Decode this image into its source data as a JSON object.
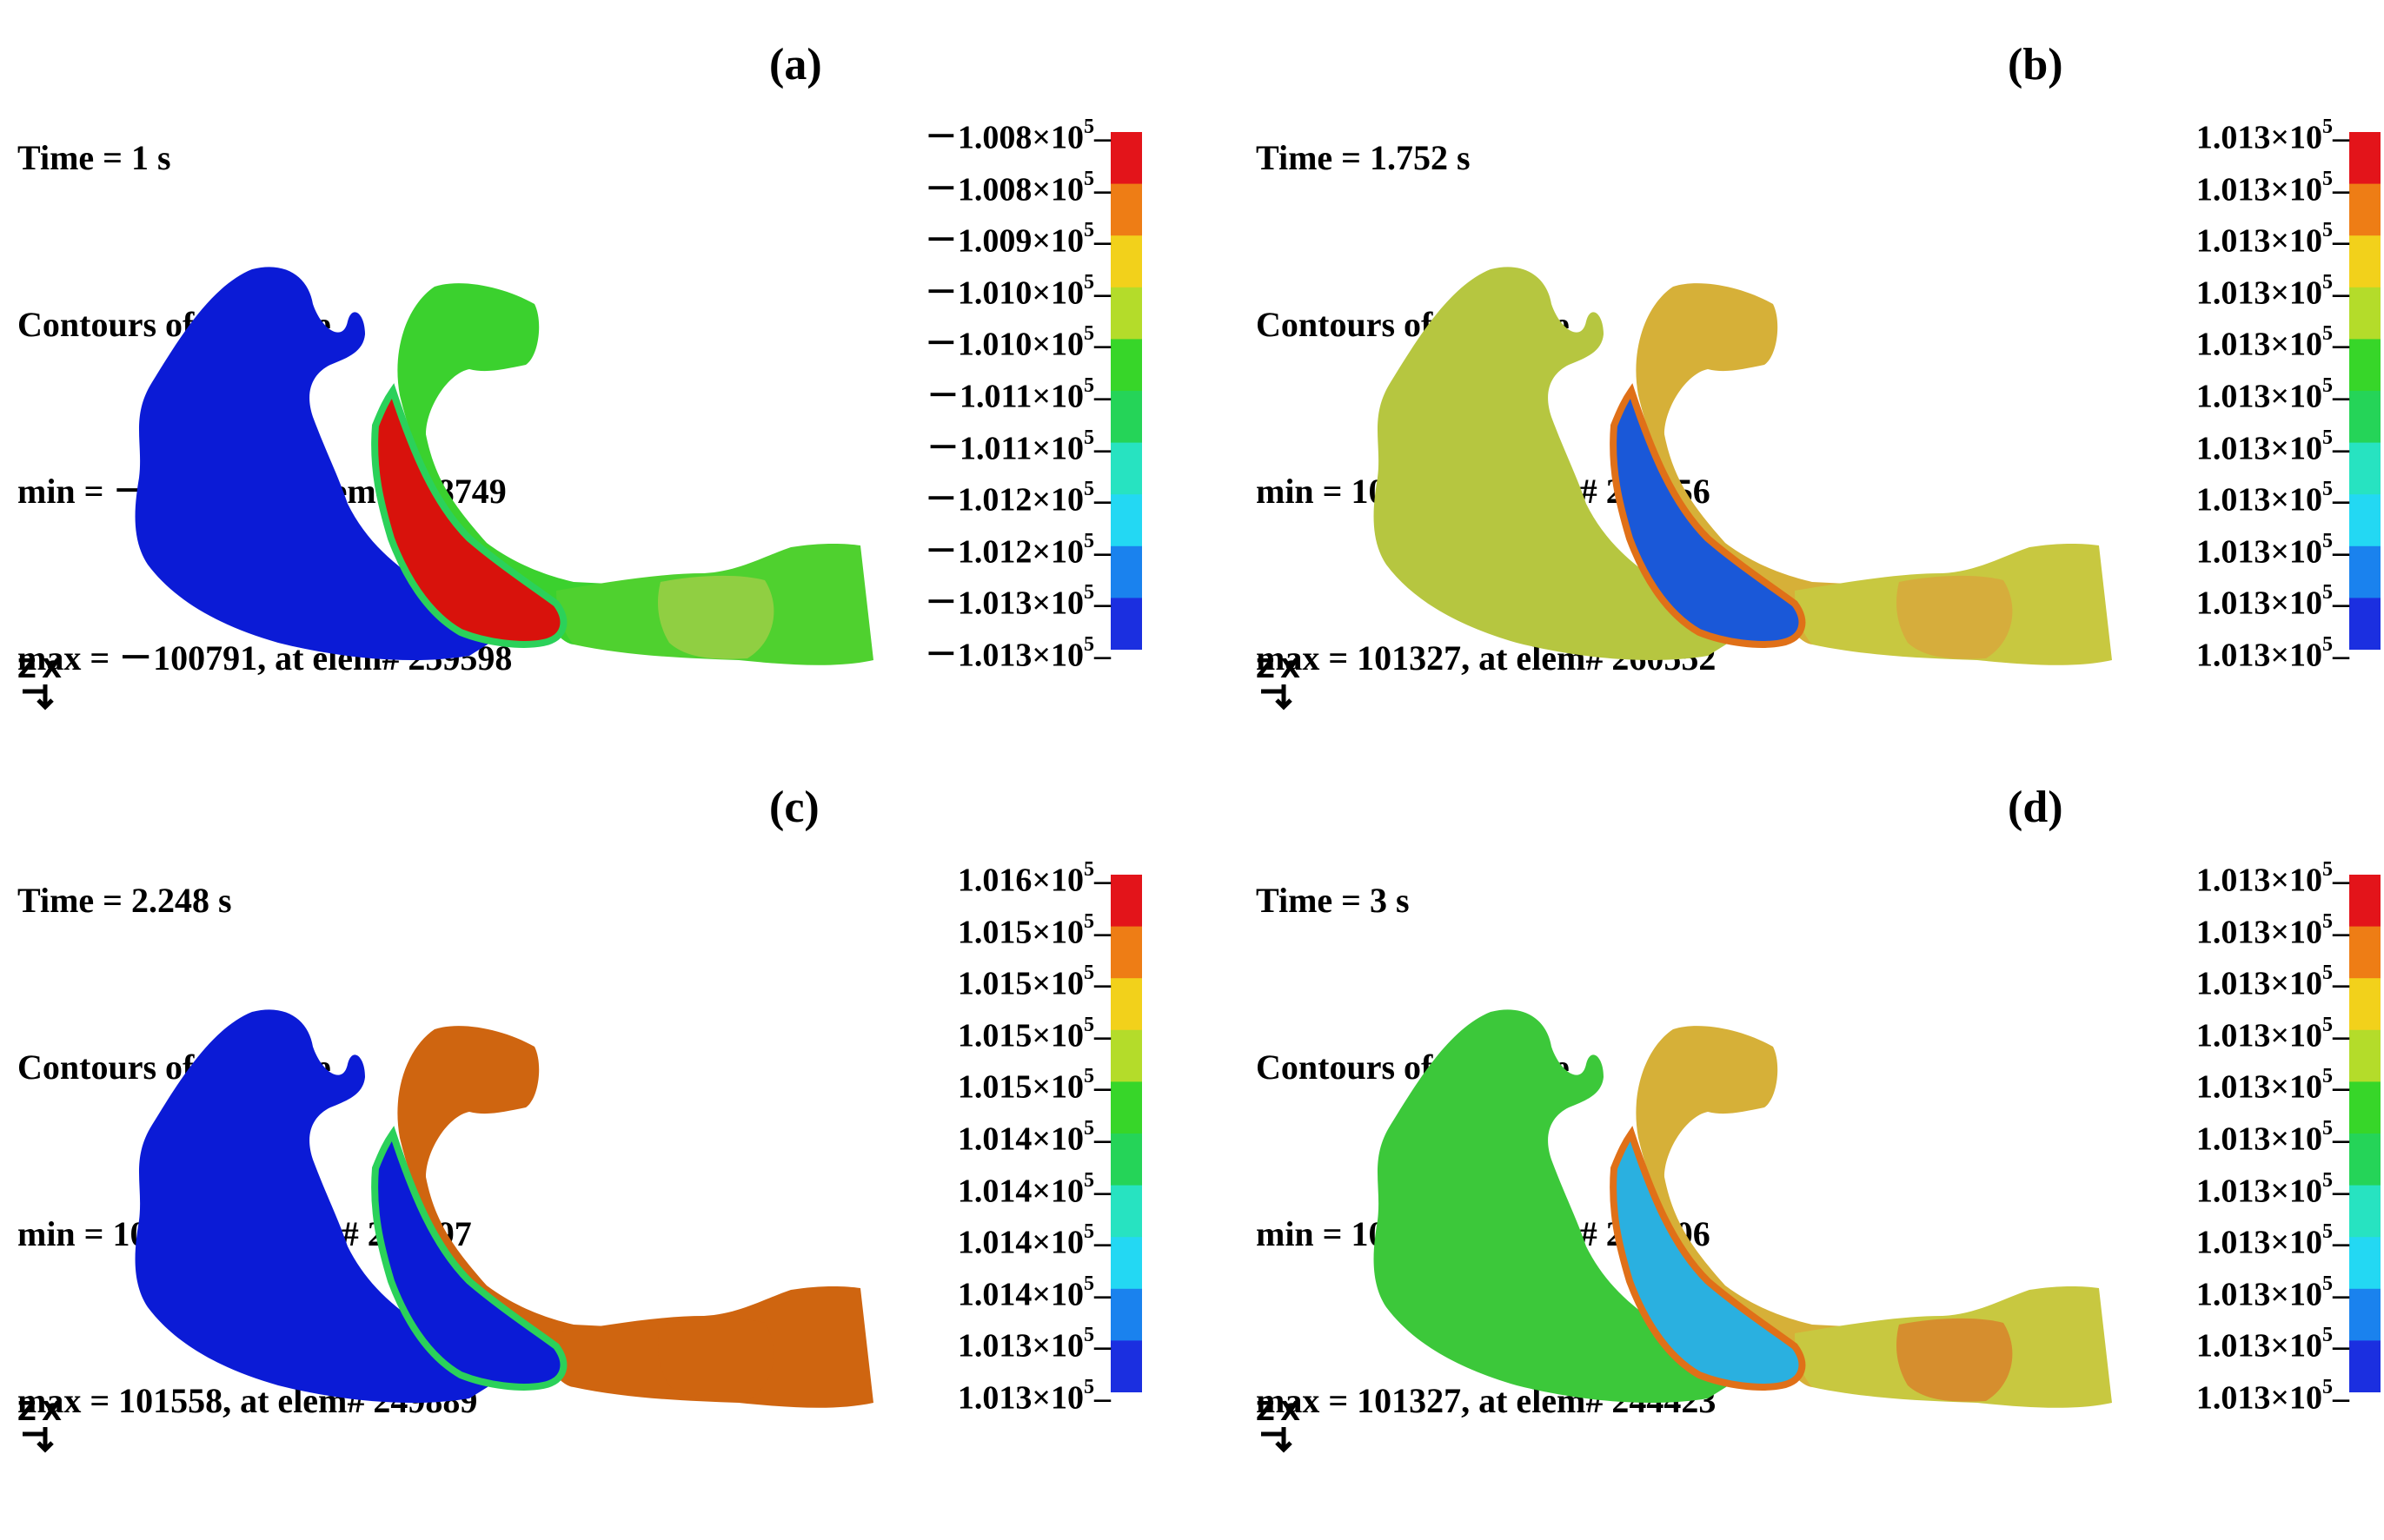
{
  "panels": [
    {
      "label": "(a)",
      "time": "Time = 1 s",
      "title": "Contours of Pressure",
      "min": "min = －101347, at elem# 258749",
      "max": "max = －100791, at elem# 259598",
      "colorbar_ticks": [
        "－1.008×10",
        "－1.008×10",
        "－1.009×10",
        "－1.010×10",
        "－1.010×10",
        "－1.011×10",
        "－1.011×10",
        "－1.012×10",
        "－1.012×10",
        "－1.013×10",
        "－1.013×10"
      ],
      "exponent": "5",
      "region_colors": {
        "left": "#0b1bd6",
        "channel": "#d8120c",
        "channel_edge": "#2bd15a",
        "upper": "#3bd12e",
        "tail": "#4fd12f",
        "tail_patch": "#9bcf45"
      }
    },
    {
      "label": "(b)",
      "time": "Time = 1.752 s",
      "title": "Contours of Pressure",
      "min": "min = 101322, at elem# 276556",
      "max": "max = 101327, at elem# 260552",
      "colorbar_ticks": [
        "1.013×10",
        "1.013×10",
        "1.013×10",
        "1.013×10",
        "1.013×10",
        "1.013×10",
        "1.013×10",
        "1.013×10",
        "1.013×10",
        "1.013×10",
        "1.013×10"
      ],
      "exponent": "5",
      "region_colors": {
        "left": "#b6c640",
        "channel": "#1a58d8",
        "channel_edge": "#e07018",
        "upper": "#d6b038",
        "tail": "#c8c840",
        "tail_patch": "#d8a83c"
      }
    },
    {
      "label": "(c)",
      "time": "Time = 2.248 s",
      "title": "Contours of Pressure",
      "min": "min = 101304, at elem# 273097",
      "max": "max = 101558, at elem# 249889",
      "colorbar_ticks": [
        "1.016×10",
        "1.015×10",
        "1.015×10",
        "1.015×10",
        "1.015×10",
        "1.014×10",
        "1.014×10",
        "1.014×10",
        "1.014×10",
        "1.013×10",
        "1.013×10"
      ],
      "exponent": "5",
      "region_colors": {
        "left": "#0b1bd6",
        "channel": "#0b1bd6",
        "channel_edge": "#2bd15a",
        "upper": "#cf6510",
        "tail": "#cf6510",
        "tail_patch": "#cf6510"
      }
    },
    {
      "label": "(d)",
      "time": "Time = 3 s",
      "title": "Contours of Pressure",
      "min": "min = 101323, at elem# 272506",
      "max": "max = 101327, at elem# 244423",
      "colorbar_ticks": [
        "1.013×10",
        "1.013×10",
        "1.013×10",
        "1.013×10",
        "1.013×10",
        "1.013×10",
        "1.013×10",
        "1.013×10",
        "1.013×10",
        "1.013×10",
        "1.013×10"
      ],
      "exponent": "5",
      "region_colors": {
        "left": "#3cc83a",
        "channel": "#2ab0e0",
        "channel_edge": "#e07018",
        "upper": "#d6b038",
        "tail": "#c8c840",
        "tail_patch": "#d8842c"
      }
    }
  ],
  "colorbar_colors": [
    "#e3141a",
    "#ee7d15",
    "#f2d11b",
    "#b4dc2a",
    "#37d629",
    "#25d458",
    "#27e3c1",
    "#23d8f3",
    "#1a82ee",
    "#1b2fe0"
  ],
  "triad_axes": [
    "Z",
    "X"
  ]
}
